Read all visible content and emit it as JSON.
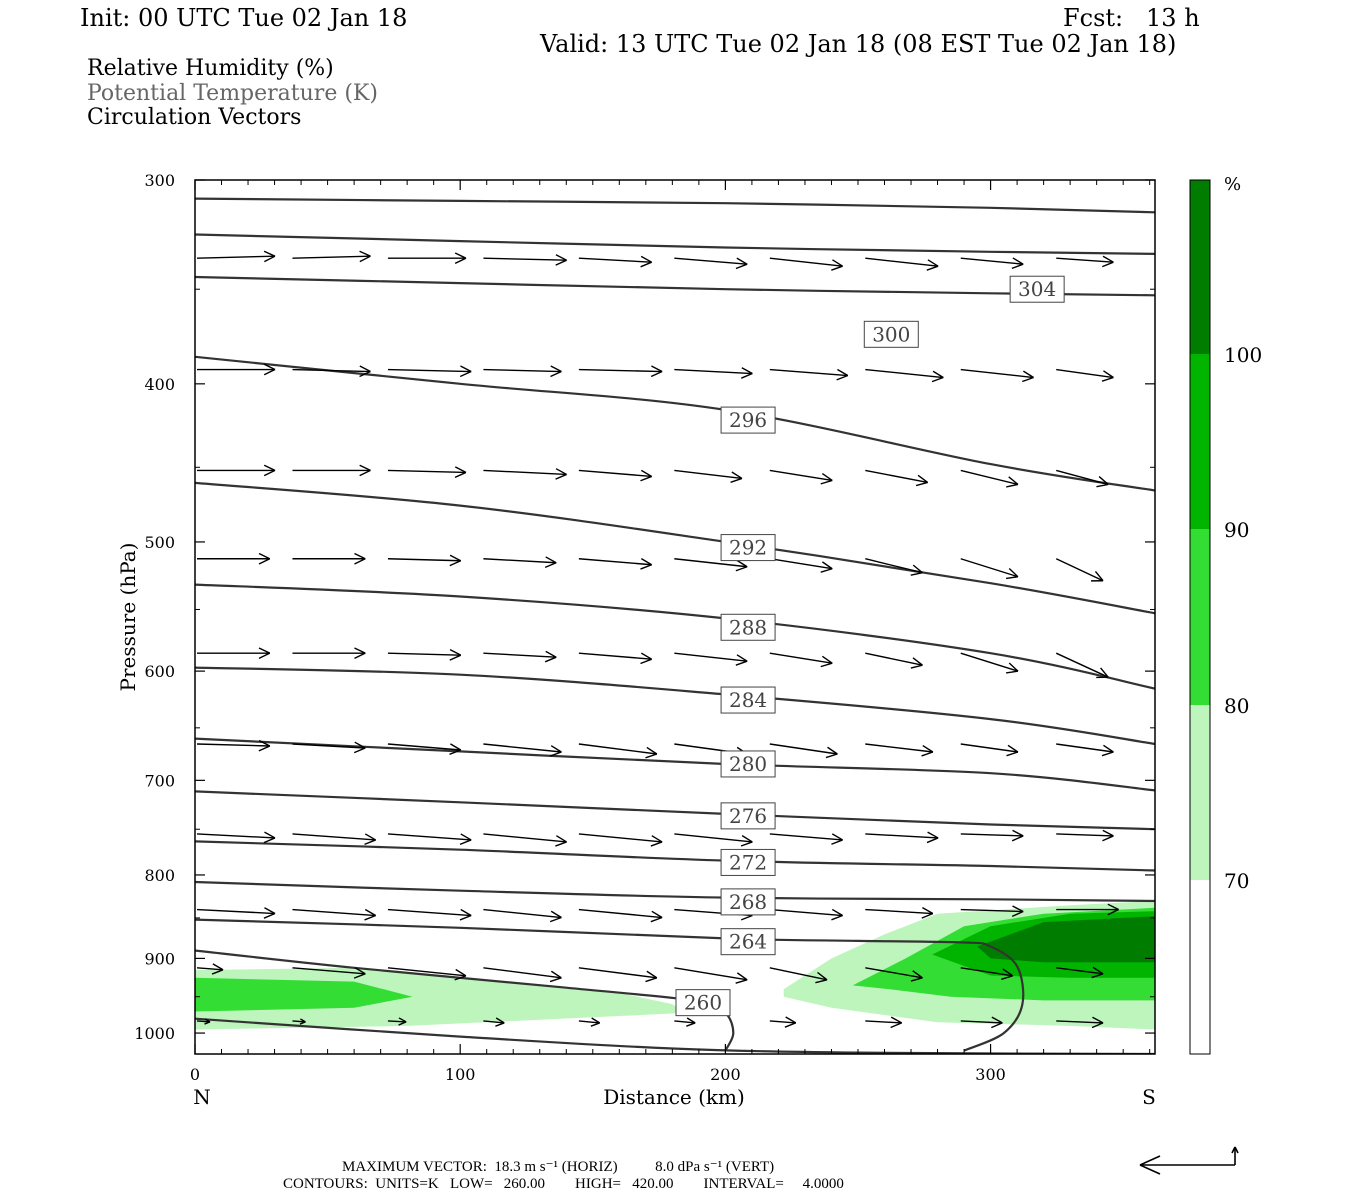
{
  "header": {
    "init": "Init: 00 UTC Tue 02 Jan 18",
    "fcst": "Fcst:   13 h",
    "valid": "Valid: 13 UTC Tue 02 Jan 18 (08 EST Tue 02 Jan 18)"
  },
  "legend": {
    "line1": "Relative Humidity (%)",
    "line2": "Potential Temperature (K)",
    "line3": "Circulation Vectors"
  },
  "footer": {
    "max_vector": "MAXIMUM VECTOR:  18.3 m s⁻¹ (HORIZ)          8.0 dPa s⁻¹ (VERT)",
    "contours": "CONTOURS:  UNITS=K   LOW=   260.00        HIGH=   420.00        INTERVAL=     4.0000"
  },
  "colors": {
    "rh_70": "#bdf5bd",
    "rh_80": "#33dd33",
    "rh_90": "#00b400",
    "rh_100": "#007d00",
    "contour": "#333333",
    "vector": "#000000"
  },
  "chart_data": {
    "type": "cross-section",
    "xlabel": "Distance (km)",
    "ylabel": "Pressure (hPa)",
    "xlim": [
      0,
      362
    ],
    "ylim": [
      1030,
      300
    ],
    "y_scale": "log",
    "x_ticks": [
      0,
      100,
      200,
      300
    ],
    "y_ticks": [
      300,
      400,
      500,
      600,
      700,
      800,
      900,
      1000
    ],
    "x_end_labels": {
      "left": "N",
      "right": "S"
    },
    "colorbar": {
      "title": "%",
      "levels": [
        70,
        80,
        90,
        100
      ],
      "tick_labels": [
        "70",
        "80",
        "90",
        "100"
      ]
    },
    "theta_labels": [
      {
        "value": "304",
        "x": 307,
        "p": 350
      },
      {
        "value": "300",
        "x": 252,
        "p": 373
      },
      {
        "value": "296",
        "x": 198,
        "p": 421
      },
      {
        "value": "292",
        "x": 198,
        "p": 504
      },
      {
        "value": "288",
        "x": 198,
        "p": 564
      },
      {
        "value": "284",
        "x": 198,
        "p": 625
      },
      {
        "value": "280",
        "x": 198,
        "p": 684
      },
      {
        "value": "276",
        "x": 198,
        "p": 736
      },
      {
        "value": "272",
        "x": 198,
        "p": 786
      },
      {
        "value": "268",
        "x": 198,
        "p": 831
      },
      {
        "value": "264",
        "x": 198,
        "p": 879
      },
      {
        "value": "260",
        "x": 181,
        "p": 958
      }
    ],
    "theta_lines": [
      {
        "x": [
          0,
          100,
          200,
          300,
          362
        ],
        "p": [
          308,
          309,
          310,
          312,
          314
        ]
      },
      {
        "x": [
          0,
          100,
          200,
          300,
          362
        ],
        "p": [
          324,
          327,
          330,
          332,
          333
        ]
      },
      {
        "x": [
          0,
          100,
          200,
          300,
          362
        ],
        "p": [
          344,
          347,
          350,
          352,
          353
        ]
      },
      {
        "x": [
          0,
          100,
          200,
          300,
          362
        ],
        "p": [
          385,
          400,
          415,
          448,
          465
        ]
      },
      {
        "x": [
          0,
          100,
          200,
          300,
          362
        ],
        "p": [
          460,
          475,
          500,
          530,
          553
        ]
      },
      {
        "x": [
          0,
          100,
          200,
          300,
          362
        ],
        "p": [
          531,
          540,
          557,
          585,
          615
        ]
      },
      {
        "x": [
          0,
          100,
          200,
          300,
          362
        ],
        "p": [
          597,
          603,
          620,
          642,
          665
        ]
      },
      {
        "x": [
          0,
          100,
          200,
          300,
          362
        ],
        "p": [
          660,
          672,
          684,
          693,
          710
        ]
      },
      {
        "x": [
          0,
          100,
          200,
          300,
          362
        ],
        "p": [
          711,
          722,
          734,
          745,
          750
        ]
      },
      {
        "x": [
          0,
          100,
          200,
          300,
          362
        ],
        "p": [
          763,
          772,
          784,
          790,
          795
        ]
      },
      {
        "x": [
          0,
          100,
          200,
          300,
          362
        ],
        "p": [
          808,
          818,
          826,
          828,
          830
        ]
      },
      {
        "x": [
          0,
          100,
          200,
          250,
          290,
          300,
          310,
          312,
          305,
          290
        ],
        "p": [
          852,
          862,
          875,
          878,
          880,
          885,
          910,
          960,
          1000,
          1025
        ]
      },
      {
        "x": [
          0,
          60,
          140,
          190,
          200,
          203,
          200
        ],
        "p": [
          890,
          912,
          938,
          956,
          972,
          1000,
          1025
        ]
      },
      {
        "x": [
          0,
          100,
          180,
          250,
          362
        ],
        "p": [
          980,
          1005,
          1022,
          1028,
          1030
        ]
      }
    ],
    "rh_regions": [
      {
        "level": 70,
        "x": [
          0,
          60,
          110,
          160,
          180,
          185,
          80,
          0
        ],
        "p": [
          915,
          912,
          928,
          945,
          960,
          972,
          990,
          995
        ]
      },
      {
        "level": 80,
        "x": [
          0,
          60,
          82,
          60,
          0
        ],
        "p": [
          925,
          930,
          950,
          965,
          970
        ]
      },
      {
        "level": 70,
        "x": [
          222,
          240,
          260,
          280,
          330,
          362,
          362,
          330,
          280,
          240,
          222
        ],
        "p": [
          940,
          900,
          870,
          845,
          835,
          830,
          995,
          990,
          985,
          965,
          950
        ]
      },
      {
        "level": 80,
        "x": [
          248,
          268,
          290,
          320,
          362,
          362,
          320,
          285,
          262,
          248
        ],
        "p": [
          935,
          900,
          860,
          845,
          838,
          955,
          955,
          950,
          940,
          935
        ]
      },
      {
        "level": 90,
        "x": [
          278,
          300,
          330,
          362,
          362,
          330,
          300,
          278
        ],
        "p": [
          895,
          860,
          845,
          842,
          925,
          925,
          922,
          895
        ]
      },
      {
        "level": 100,
        "x": [
          295,
          320,
          362,
          362,
          320,
          300,
          295
        ],
        "p": [
          885,
          855,
          848,
          905,
          905,
          900,
          885
        ]
      }
    ],
    "vector_rows": [
      {
        "p": 335,
        "x": [
          0,
          36,
          72,
          108,
          144,
          180,
          216,
          252,
          288,
          324
        ],
        "dx": [
          30,
          30,
          30,
          32,
          28,
          28,
          28,
          28,
          24,
          22
        ],
        "dp": [
          -2,
          -2,
          0,
          2,
          4,
          6,
          8,
          8,
          6,
          4
        ]
      },
      {
        "p": 392,
        "x": [
          0,
          36,
          72,
          108,
          144,
          180,
          216,
          252,
          288,
          324
        ],
        "dx": [
          30,
          30,
          32,
          30,
          32,
          30,
          30,
          30,
          28,
          22
        ],
        "dp": [
          0,
          2,
          2,
          2,
          2,
          4,
          6,
          8,
          8,
          8
        ]
      },
      {
        "p": 452,
        "x": [
          0,
          36,
          72,
          108,
          144,
          180,
          216,
          252,
          288,
          324
        ],
        "dx": [
          30,
          30,
          30,
          32,
          28,
          26,
          24,
          24,
          22,
          20
        ],
        "dp": [
          0,
          0,
          2,
          4,
          6,
          8,
          10,
          12,
          14,
          14
        ]
      },
      {
        "p": 512,
        "x": [
          0,
          36,
          72,
          108,
          144,
          180,
          216,
          252,
          288,
          324
        ],
        "dx": [
          28,
          28,
          28,
          28,
          28,
          28,
          24,
          22,
          22,
          18
        ],
        "dp": [
          0,
          0,
          2,
          4,
          6,
          8,
          10,
          14,
          18,
          22
        ]
      },
      {
        "p": 585,
        "x": [
          0,
          36,
          72,
          108,
          144,
          180,
          216,
          252,
          288,
          324
        ],
        "dx": [
          28,
          28,
          28,
          28,
          28,
          28,
          24,
          22,
          22,
          20
        ],
        "dp": [
          0,
          0,
          2,
          4,
          6,
          8,
          10,
          12,
          18,
          24
        ]
      },
      {
        "p": 665,
        "x": [
          0,
          36,
          72,
          108,
          144,
          180,
          216,
          252,
          288,
          324
        ],
        "dx": [
          28,
          28,
          28,
          30,
          30,
          28,
          26,
          26,
          22,
          22
        ],
        "dp": [
          2,
          4,
          6,
          8,
          10,
          10,
          10,
          8,
          8,
          8
        ]
      },
      {
        "p": 755,
        "x": [
          0,
          36,
          72,
          108,
          144,
          180,
          216,
          252,
          288,
          324
        ],
        "dx": [
          30,
          32,
          32,
          32,
          32,
          30,
          28,
          28,
          24,
          22
        ],
        "dp": [
          4,
          6,
          6,
          8,
          8,
          8,
          6,
          4,
          2,
          2
        ]
      },
      {
        "p": 840,
        "x": [
          0,
          36,
          72,
          108,
          144,
          180,
          216,
          252,
          288,
          324
        ],
        "dx": [
          30,
          32,
          32,
          30,
          32,
          30,
          28,
          26,
          24,
          24
        ],
        "dp": [
          4,
          6,
          6,
          8,
          8,
          6,
          6,
          4,
          2,
          0
        ]
      },
      {
        "p": 912,
        "x": [
          0,
          36,
          72,
          108,
          144,
          180,
          216,
          252,
          288,
          324
        ],
        "dx": [
          10,
          28,
          30,
          30,
          30,
          28,
          22,
          22,
          20,
          18
        ],
        "dp": [
          2,
          6,
          8,
          10,
          10,
          12,
          12,
          10,
          8,
          6
        ]
      },
      {
        "p": 983,
        "x": [
          0,
          36,
          72,
          108,
          144,
          180,
          216,
          252,
          288,
          324
        ],
        "dx": [
          5,
          5,
          7,
          8,
          8,
          8,
          10,
          14,
          16,
          18
        ],
        "dp": [
          1,
          1,
          1,
          2,
          2,
          2,
          2,
          2,
          2,
          2
        ]
      }
    ]
  }
}
